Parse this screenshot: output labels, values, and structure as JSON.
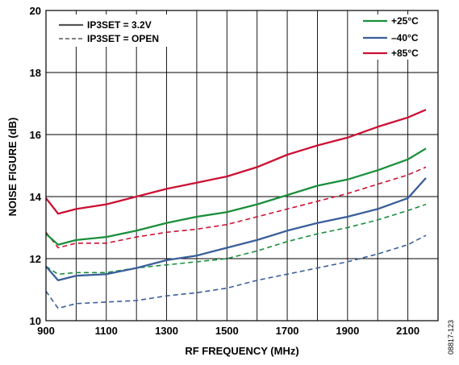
{
  "chart_data": {
    "type": "line",
    "xlabel": "RF FREQUENCY (MHz)",
    "ylabel": "NOISE FIGURE (dB)",
    "xlim": [
      900,
      2200
    ],
    "ylim": [
      10,
      20
    ],
    "x_ticks": [
      "900",
      "1100",
      "1300",
      "1500",
      "1700",
      "1900",
      "2100"
    ],
    "y_ticks": [
      "10",
      "12",
      "14",
      "16",
      "18",
      "20"
    ],
    "grid": true,
    "legend_style": {
      "title": "IP3SET",
      "solid": "IP3SET = 3.2V",
      "dashed": "IP3SET = OPEN",
      "placement": "top-left"
    },
    "legend_temp": {
      "placement": "top-right",
      "items": [
        {
          "label": "+25°C",
          "color": "#1a8f3c"
        },
        {
          "label": "–40°C",
          "color": "#3a5f9a"
        },
        {
          "label": "+85°C",
          "color": "#cc1133"
        }
      ]
    },
    "figure_id": "08817-123",
    "series": [
      {
        "temp": "+85°C",
        "style": "solid",
        "color": "#cc1133",
        "x": [
          900,
          940,
          1000,
          1100,
          1200,
          1300,
          1400,
          1500,
          1600,
          1700,
          1800,
          1900,
          2000,
          2100,
          2160
        ],
        "y": [
          13.95,
          13.45,
          13.6,
          13.75,
          14.0,
          14.25,
          14.45,
          14.65,
          14.95,
          15.35,
          15.65,
          15.9,
          16.25,
          16.55,
          16.8
        ]
      },
      {
        "temp": "+85°C",
        "style": "dashed",
        "color": "#cc1133",
        "x": [
          900,
          940,
          1000,
          1100,
          1200,
          1300,
          1400,
          1500,
          1600,
          1700,
          1800,
          1900,
          2000,
          2100,
          2160
        ],
        "y": [
          12.85,
          12.35,
          12.5,
          12.5,
          12.7,
          12.85,
          12.95,
          13.1,
          13.35,
          13.6,
          13.85,
          14.1,
          14.4,
          14.7,
          14.95
        ]
      },
      {
        "temp": "+25°C",
        "style": "solid",
        "color": "#1a8f3c",
        "x": [
          900,
          940,
          1000,
          1100,
          1200,
          1300,
          1400,
          1500,
          1600,
          1700,
          1800,
          1900,
          2000,
          2100,
          2160
        ],
        "y": [
          12.8,
          12.45,
          12.6,
          12.7,
          12.9,
          13.15,
          13.35,
          13.5,
          13.75,
          14.05,
          14.35,
          14.55,
          14.85,
          15.2,
          15.55
        ]
      },
      {
        "temp": "+25°C",
        "style": "dashed",
        "color": "#1a8f3c",
        "x": [
          900,
          940,
          1000,
          1100,
          1200,
          1300,
          1400,
          1500,
          1600,
          1700,
          1800,
          1900,
          2000,
          2100,
          2160
        ],
        "y": [
          11.75,
          11.5,
          11.55,
          11.55,
          11.7,
          11.8,
          11.9,
          12.0,
          12.25,
          12.55,
          12.8,
          13.0,
          13.25,
          13.55,
          13.75
        ]
      },
      {
        "temp": "–40°C",
        "style": "solid",
        "color": "#3a5f9a",
        "x": [
          900,
          940,
          1000,
          1100,
          1200,
          1300,
          1400,
          1500,
          1600,
          1700,
          1800,
          1900,
          2000,
          2100,
          2160
        ],
        "y": [
          11.75,
          11.3,
          11.45,
          11.5,
          11.7,
          11.95,
          12.1,
          12.35,
          12.6,
          12.9,
          13.15,
          13.35,
          13.6,
          13.95,
          14.6
        ]
      },
      {
        "temp": "–40°C",
        "style": "dashed",
        "color": "#3a5f9a",
        "x": [
          900,
          940,
          1000,
          1100,
          1200,
          1300,
          1400,
          1500,
          1600,
          1700,
          1800,
          1900,
          2000,
          2100,
          2160
        ],
        "y": [
          10.95,
          10.4,
          10.55,
          10.6,
          10.65,
          10.8,
          10.9,
          11.05,
          11.3,
          11.5,
          11.7,
          11.9,
          12.15,
          12.45,
          12.75
        ]
      }
    ]
  }
}
